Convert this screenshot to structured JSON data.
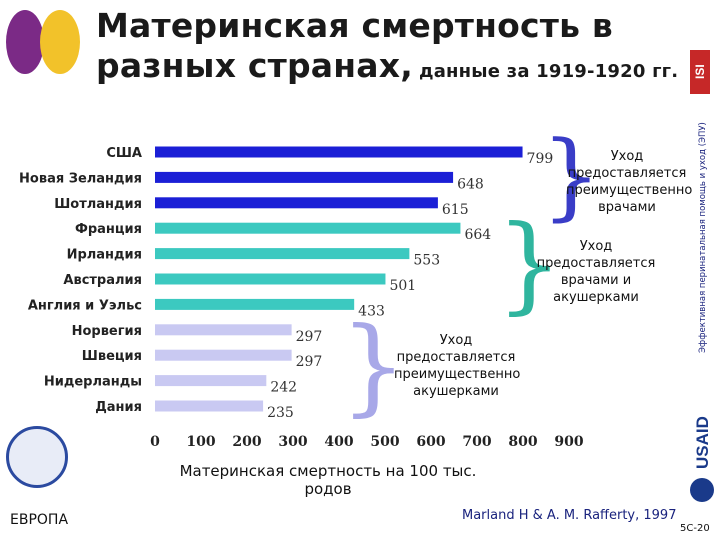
{
  "title": {
    "main": "Материнская смертность в разных странах,",
    "sub": "данные за 1919-1920 гг."
  },
  "side_label": "Эффективная перинатальная помощь и уход (ЭПУ)",
  "logo_isi": "ISI",
  "logo_usaid": "USAID",
  "logo_who": "ЕВРОПА",
  "source": "Marland H & A. M. Rafferty, 1997",
  "slide_number": "5C-20",
  "colors": {
    "physicians": "#1b1fd6",
    "mixed": "#3cc9c0",
    "midwives": "#c9c9f2",
    "brace_physicians": "#3a3dc7",
    "brace_mixed": "#2fb59e",
    "brace_midwives": "#a8a8e8"
  },
  "chart_data": {
    "type": "bar",
    "orientation": "horizontal",
    "categories": [
      "США",
      "Новая Зеландия",
      "Шотландия",
      "Франция",
      "Ирландия",
      "Австралия",
      "Англия и Уэльс",
      "Норвегия",
      "Швеция",
      "Нидерланды",
      "Дания"
    ],
    "values": [
      799,
      648,
      615,
      664,
      553,
      501,
      433,
      297,
      297,
      242,
      235
    ],
    "groups": [
      0,
      0,
      0,
      1,
      1,
      1,
      1,
      2,
      2,
      2,
      2
    ],
    "xlabel": "Материнская смертность на 100 тыс. родов",
    "ylabel": "",
    "xlim": [
      0,
      900
    ],
    "xticks": [
      0,
      100,
      200,
      300,
      400,
      500,
      600,
      700,
      800,
      900
    ],
    "grid": false,
    "annotations": [
      "Уход предоставляется преимущественно врачами",
      "Уход предоставляется врачами и акушерками",
      "Уход предоставляется преимущественно акушерками"
    ]
  }
}
